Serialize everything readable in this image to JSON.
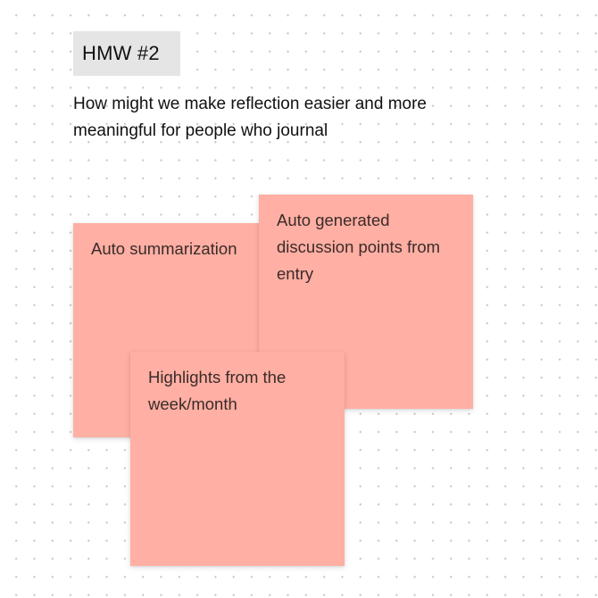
{
  "hmw": {
    "tag": "HMW #2",
    "question": "How might we make reflection easier and more meaningful for people who journal"
  },
  "stickies": [
    {
      "text": "Auto summarization",
      "color": "#ffafa3"
    },
    {
      "text": "Auto generated discussion points from entry",
      "color": "#ffafa3"
    },
    {
      "text": "Highlights from the week/month",
      "color": "#ffafa3"
    }
  ]
}
